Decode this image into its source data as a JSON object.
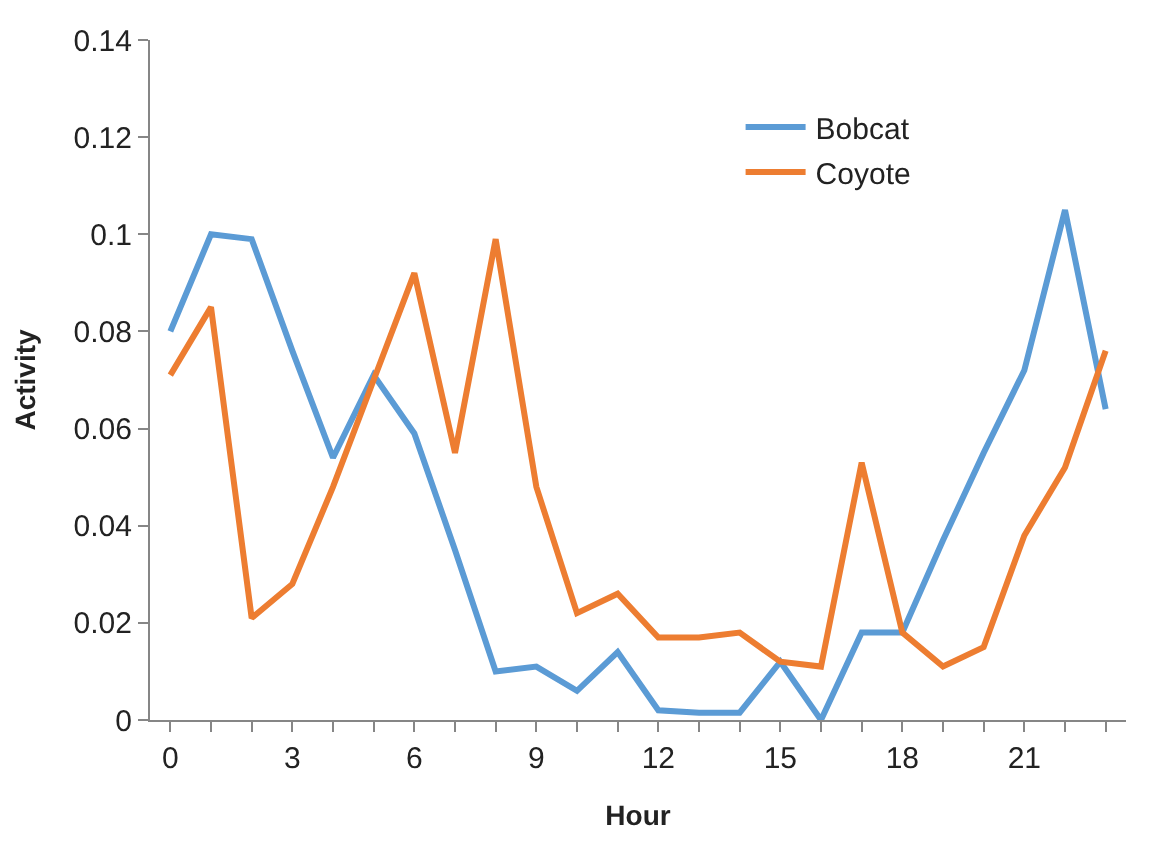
{
  "chart_data": {
    "type": "line",
    "xlabel": "Hour",
    "ylabel": "Activity",
    "x": [
      0,
      1,
      2,
      3,
      4,
      5,
      6,
      7,
      8,
      9,
      10,
      11,
      12,
      13,
      14,
      15,
      16,
      17,
      18,
      19,
      20,
      21,
      22,
      23
    ],
    "series": [
      {
        "name": "Bobcat",
        "color": "#5b9bd5",
        "values": [
          0.08,
          0.1,
          0.099,
          0.076,
          0.054,
          0.071,
          0.059,
          0.035,
          0.01,
          0.011,
          0.006,
          0.014,
          0.002,
          0.0015,
          0.0015,
          0.012,
          0.0,
          0.018,
          0.018,
          0.037,
          0.055,
          0.072,
          0.105,
          0.064
        ]
      },
      {
        "name": "Coyote",
        "color": "#ed7d31",
        "values": [
          0.071,
          0.085,
          0.021,
          0.028,
          0.048,
          0.07,
          0.092,
          0.055,
          0.099,
          0.048,
          0.022,
          0.026,
          0.017,
          0.017,
          0.018,
          0.012,
          0.011,
          0.053,
          0.018,
          0.011,
          0.015,
          0.038,
          0.052,
          0.076
        ]
      }
    ],
    "xlim": [
      -0.5,
      23.5
    ],
    "xticks": [
      0,
      {
        "value": 1,
        "label": null
      },
      {
        "value": 2,
        "label": null
      },
      3,
      {
        "value": 4,
        "label": null
      },
      {
        "value": 5,
        "label": null
      },
      6,
      {
        "value": 7,
        "label": null
      },
      {
        "value": 8,
        "label": null
      },
      9,
      {
        "value": 10,
        "label": null
      },
      {
        "value": 11,
        "label": null
      },
      12,
      {
        "value": 13,
        "label": null
      },
      {
        "value": 14,
        "label": null
      },
      15,
      {
        "value": 16,
        "label": null
      },
      {
        "value": 17,
        "label": null
      },
      18,
      {
        "value": 19,
        "label": null
      },
      {
        "value": 20,
        "label": null
      },
      21,
      {
        "value": 22,
        "label": null
      },
      {
        "value": 23,
        "label": null
      }
    ],
    "ylim": [
      0,
      0.14
    ],
    "yticks": [
      0,
      0.02,
      0.04,
      0.06,
      0.08,
      0.1,
      0.12,
      0.14
    ],
    "legend": "top right",
    "marker": "none",
    "line_style": "solid"
  }
}
